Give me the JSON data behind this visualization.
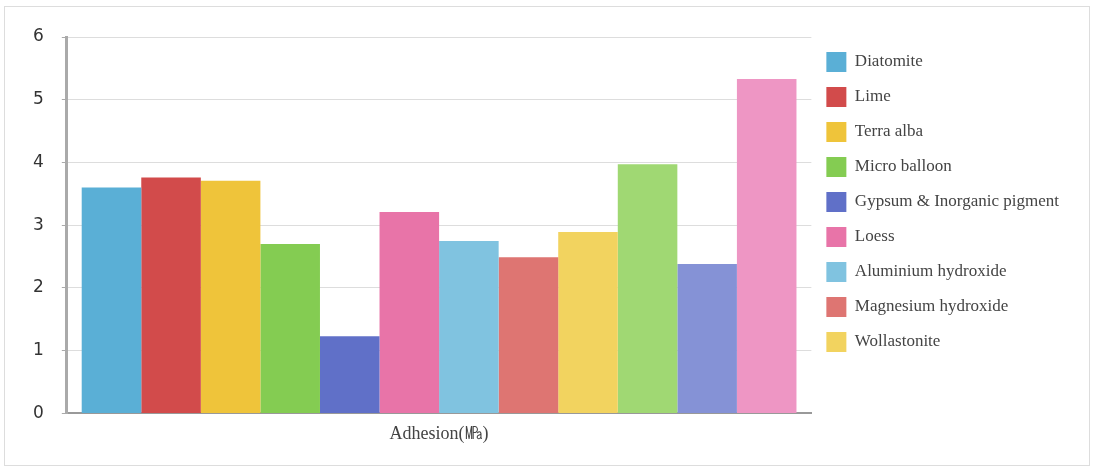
{
  "chart_data": {
    "type": "bar",
    "categories": [
      "Adhesion(㎫)"
    ],
    "series": [
      {
        "name": "Diatomite",
        "color": "#5aafd6",
        "values": [
          3.6
        ]
      },
      {
        "name": "Lime",
        "color": "#d24b4b",
        "values": [
          3.76
        ]
      },
      {
        "name": "Terra alba",
        "color": "#efc43a",
        "values": [
          3.71
        ]
      },
      {
        "name": "Micro balloon",
        "color": "#84cc52",
        "values": [
          2.7
        ]
      },
      {
        "name": "Gypsum & Inorganic pigment",
        "color": "#6070c8",
        "values": [
          1.23
        ]
      },
      {
        "name": "Loess",
        "color": "#e874a8",
        "values": [
          3.21
        ]
      },
      {
        "name": "Aluminium hydroxide",
        "color": "#80c3e0",
        "values": [
          2.75
        ]
      },
      {
        "name": "Magnesium hydroxide",
        "color": "#de7572",
        "values": [
          2.49
        ]
      },
      {
        "name": "Wollastonite",
        "color": "#f2d35f",
        "values": [
          2.89
        ]
      },
      {
        "color": "#a0d873",
        "values": [
          3.97
        ]
      },
      {
        "color": "#8592d6",
        "values": [
          2.38
        ]
      },
      {
        "color": "#ee96c4",
        "values": [
          5.33
        ]
      }
    ],
    "ylim": [
      0,
      6
    ],
    "yticks": [
      0,
      1,
      2,
      3,
      4,
      5,
      6
    ],
    "grid": "y",
    "legend": "right"
  }
}
